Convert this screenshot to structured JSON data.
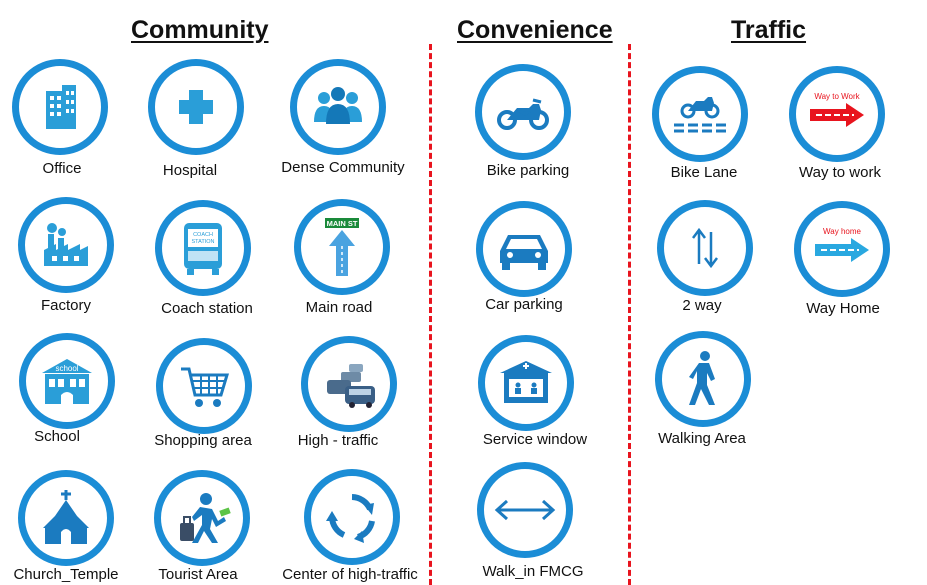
{
  "sections": {
    "community": "Community",
    "convenience": "Convenience",
    "traffic": "Traffic"
  },
  "labels": {
    "office": "Office",
    "hospital": "Hospital",
    "dense_community": "Dense Community",
    "factory": "Factory",
    "coach_station": "Coach station",
    "main_road": "Main road",
    "school": "School",
    "shopping_area": "Shopping area",
    "high_traffic": "High - traffic",
    "church_temple": "Church_Temple",
    "tourist_area": "Tourist Area",
    "center_high_traffic": "Center of high-traffic",
    "bike_parking": "Bike parking",
    "car_parking": "Car parking",
    "service_window": "Service window",
    "walk_in_fmcg": "Walk_in FMCG",
    "bike_lane": "Bike Lane",
    "way_to_work": "Way to work",
    "two_way": "2 way",
    "way_home": "Way Home",
    "walking_area": "Walking Area"
  },
  "icon_text": {
    "coach_station": "COACH STATION",
    "main_st": "MAIN ST",
    "school": "school",
    "way_to_work": "Way to Work",
    "way_home": "Way home"
  },
  "colors": {
    "ring": "#1b8dd6",
    "divider": "#e8141e",
    "arrow_red": "#e8141e",
    "arrow_blue": "#29a8e0"
  }
}
